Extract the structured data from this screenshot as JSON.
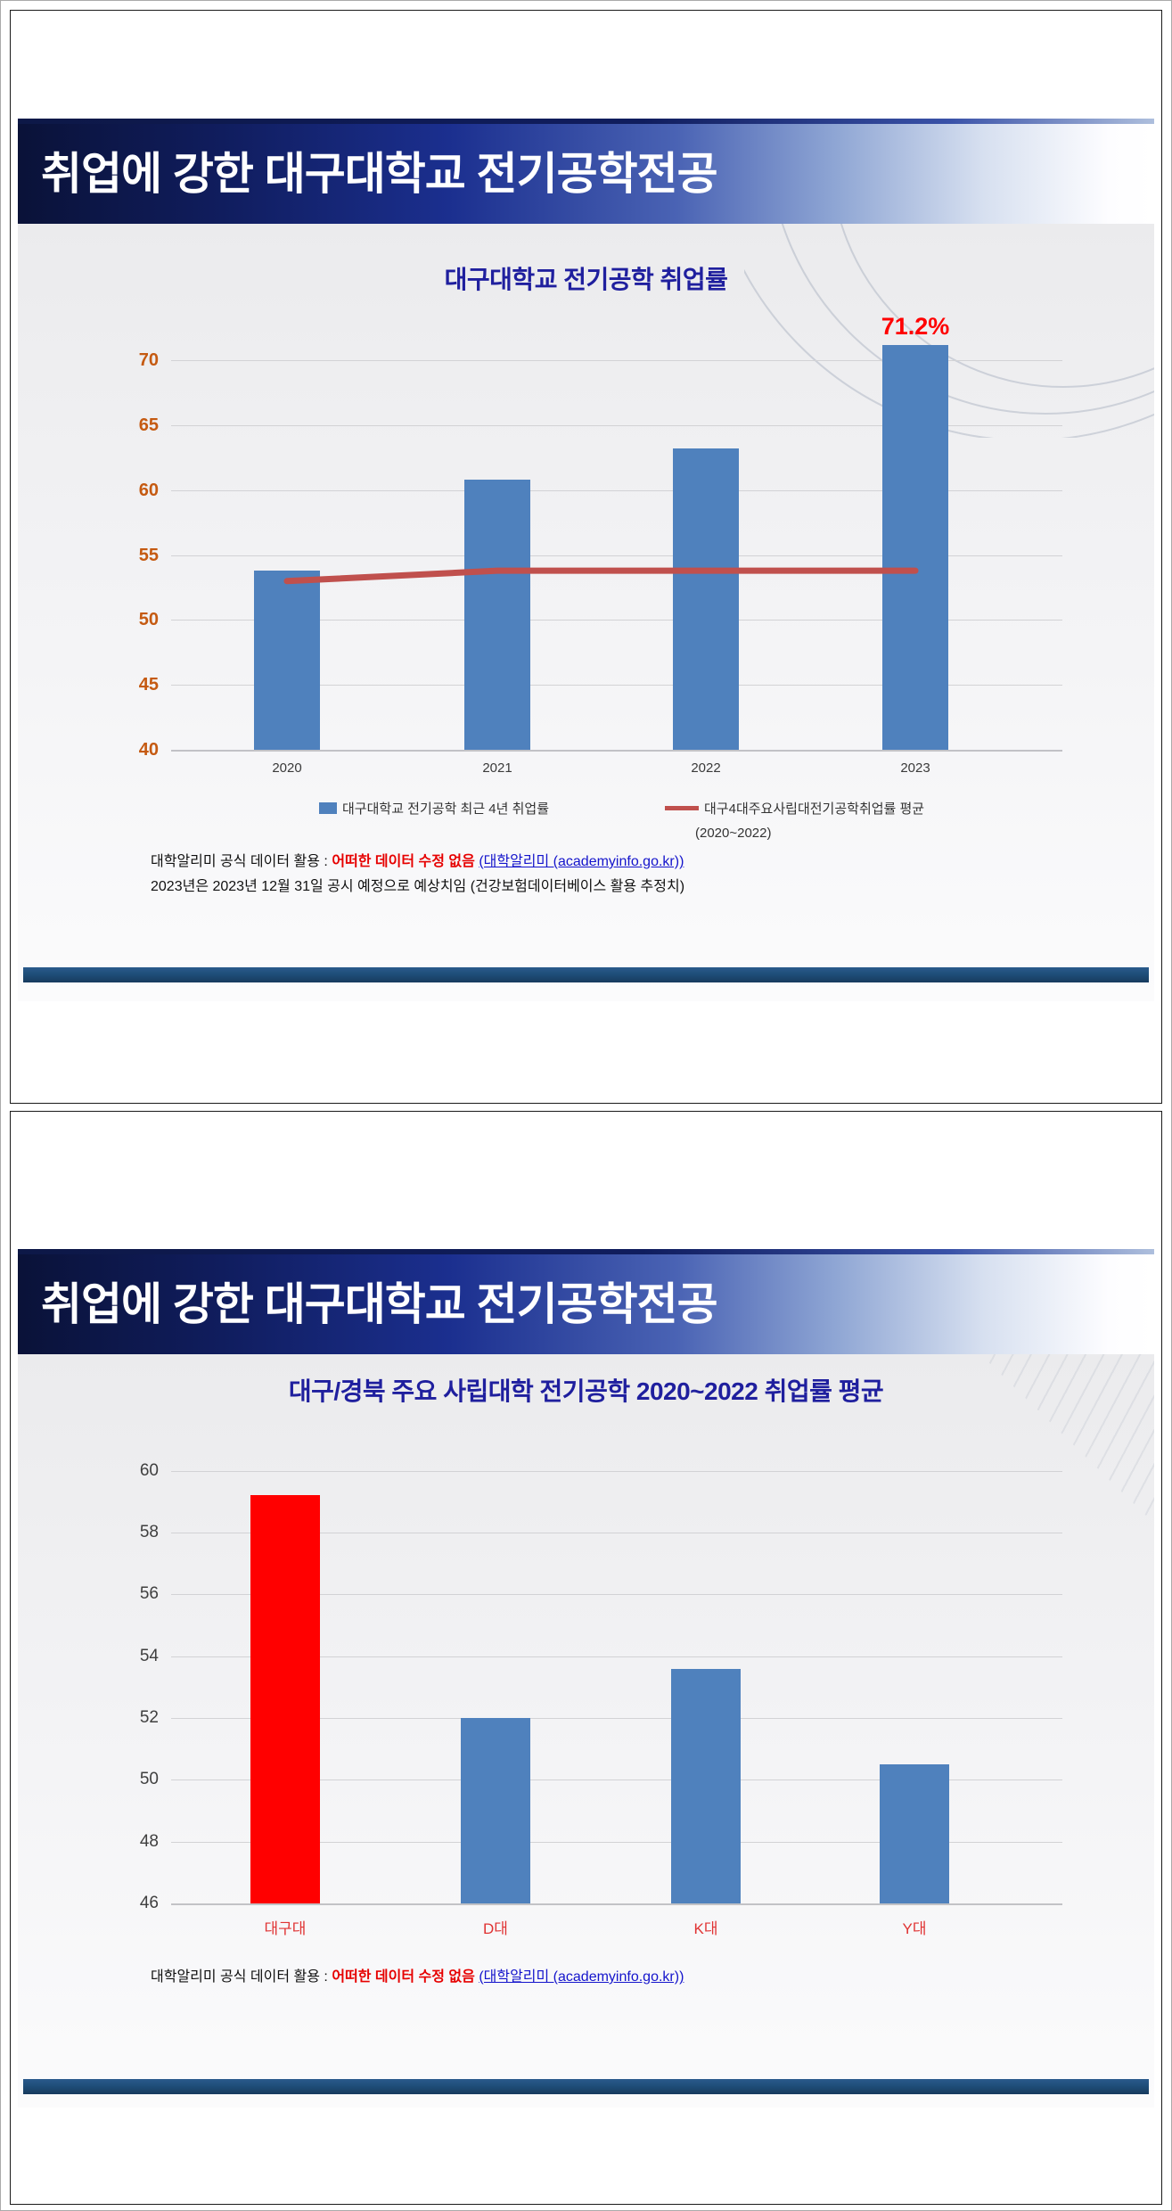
{
  "slides": {
    "slide1": {
      "banner_title": "취업에 강한 대구대학교 전기공학전공",
      "legend": {
        "bar_label": "대구대학교 전기공학 최근 4년 취업률",
        "line_label": "대구4대주요사립대전기공학취업률 평균",
        "line_sublabel": "(2020~2022)"
      },
      "footer": {
        "prefix": "대학알리미 공식 데이터 활용 : ",
        "emphasis": "어떠한 데이터 수정 없음",
        "link": "(대학알리미 (academyinfo.go.kr))",
        "line2": "2023년은 2023년 12월 31일 공시 예정으로 예상치임 (건강보험데이터베이스 활용 추정치)"
      }
    },
    "slide2": {
      "banner_title": "취업에 강한 대구대학교 전기공학전공",
      "footer": {
        "prefix": "대학알리미 공식 데이터 활용 : ",
        "emphasis": "어떠한 데이터 수정 없음",
        "link": "(대학알리미 (academyinfo.go.kr))"
      }
    }
  },
  "chart_data": [
    {
      "type": "bar",
      "title": "대구대학교 전기공학 취업률",
      "categories": [
        "2020",
        "2021",
        "2022",
        "2023"
      ],
      "series": [
        {
          "name": "대구대학교 전기공학 최근 4년 취업률",
          "type": "bar",
          "color": "#4F81BD",
          "values": [
            53.8,
            60.8,
            63.2,
            71.2
          ]
        },
        {
          "name": "대구4대주요사립대전기공학취업률 평균 (2020~2022)",
          "type": "line",
          "color": "#C0504D",
          "values": [
            53.0,
            53.8,
            53.8,
            53.8
          ]
        }
      ],
      "ylim": [
        40,
        72.5
      ],
      "yticks": [
        40,
        45,
        50,
        55,
        60,
        65,
        70
      ],
      "ytick_color": "#C55A11",
      "xtick_color": "#3A3A3A",
      "annotation": {
        "text": "71.2%",
        "category_index": 3,
        "color": "#FF0000"
      },
      "grid": true,
      "legend_position": "bottom"
    },
    {
      "type": "bar",
      "title": "대구/경북 주요 사립대학  전기공학 2020~2022 취업률 평균",
      "categories": [
        "대구대",
        "D대",
        "K대",
        "Y대"
      ],
      "values": [
        59.2,
        52.0,
        53.6,
        50.5
      ],
      "bar_colors": [
        "#FF0000",
        "#4F81BD",
        "#4F81BD",
        "#4F81BD"
      ],
      "ylim": [
        46,
        61
      ],
      "yticks": [
        46,
        48,
        50,
        52,
        54,
        56,
        58,
        60
      ],
      "ytick_color": "#3F3F3F",
      "xtick_color": "#E03333",
      "grid": true,
      "legend_position": "none"
    }
  ],
  "colors": {
    "banner_navy": "#101D5E",
    "divider_navy": "#1F4E79",
    "bar_blue": "#4F81BD",
    "trend_red": "#C0504D",
    "highlight_red": "#FF0000",
    "footer_red": "#E60000",
    "link_blue": "#1414CC",
    "chart_title_blue": "#1F1F9E"
  }
}
